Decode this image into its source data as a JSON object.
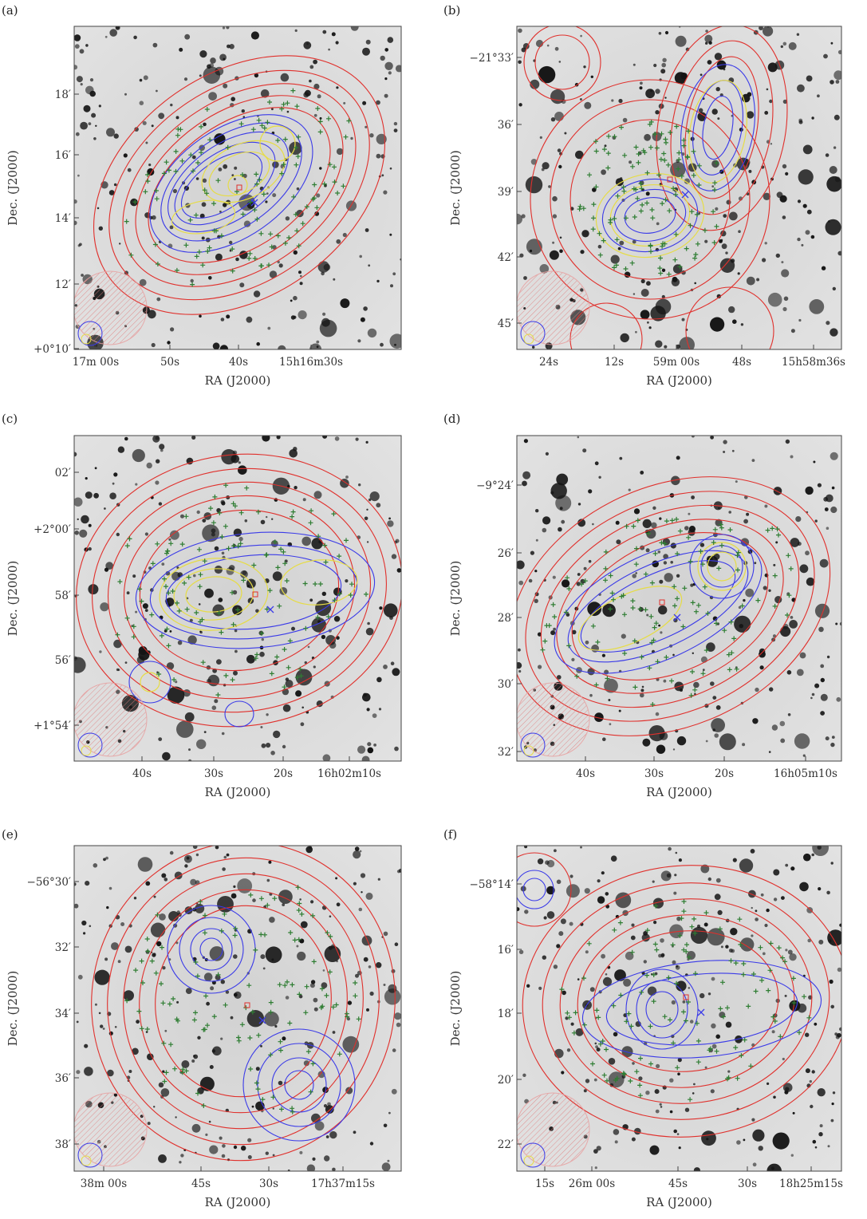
{
  "colors": {
    "red": "#e0302c",
    "blue": "#3a3ae8",
    "yellow": "#e6dc46",
    "green": "#2e7d32",
    "magenta": "#b23cc8",
    "cyan": "#25b9d6",
    "background": "#dcdcdc"
  },
  "panels": [
    {
      "label": "(a)",
      "ylabel": "Dec. (J2000)",
      "xlabel": "RA (J2000)",
      "yticks": [
        "18′",
        "16′",
        "14′",
        "12′",
        "+0°10′"
      ],
      "xticks": [
        "17m 00s",
        "50s",
        "40s",
        "15h16m30s"
      ]
    },
    {
      "label": "(b)",
      "ylabel": "Dec. (J2000)",
      "xlabel": "RA (J2000)",
      "yticks": [
        "−21°33′",
        "36′",
        "39′",
        "42′",
        "45′"
      ],
      "xticks": [
        "24s",
        "12s",
        "59m 00s",
        "48s",
        "15h58m36s"
      ]
    },
    {
      "label": "(c)",
      "ylabel": "Dec. (J2000)",
      "xlabel": "RA (J2000)",
      "yticks": [
        "02′",
        "+2°00′",
        "58′",
        "56′",
        "+1°54′"
      ],
      "xticks": [
        "40s",
        "30s",
        "20s",
        "16h02m10s"
      ]
    },
    {
      "label": "(d)",
      "ylabel": "Dec. (J2000)",
      "xlabel": "RA (J2000)",
      "yticks": [
        "−9°24′",
        "26′",
        "28′",
        "30′",
        "32′"
      ],
      "xticks": [
        "40s",
        "30s",
        "20s",
        "16h05m10s"
      ]
    },
    {
      "label": "(e)",
      "ylabel": "Dec. (J2000)",
      "xlabel": "RA (J2000)",
      "yticks": [
        "−56°30′",
        "32′",
        "34′",
        "36′",
        "38′"
      ],
      "xticks": [
        "38m 00s",
        "45s",
        "30s",
        "17h37m15s"
      ]
    },
    {
      "label": "(f)",
      "ylabel": "Dec. (J2000)",
      "xlabel": "RA (J2000)",
      "yticks": [
        "−58°14′",
        "16′",
        "18′",
        "20′",
        "22′"
      ],
      "xticks": [
        "15s",
        "26m 00s",
        "45s",
        "30s",
        "18h25m15s"
      ]
    }
  ]
}
